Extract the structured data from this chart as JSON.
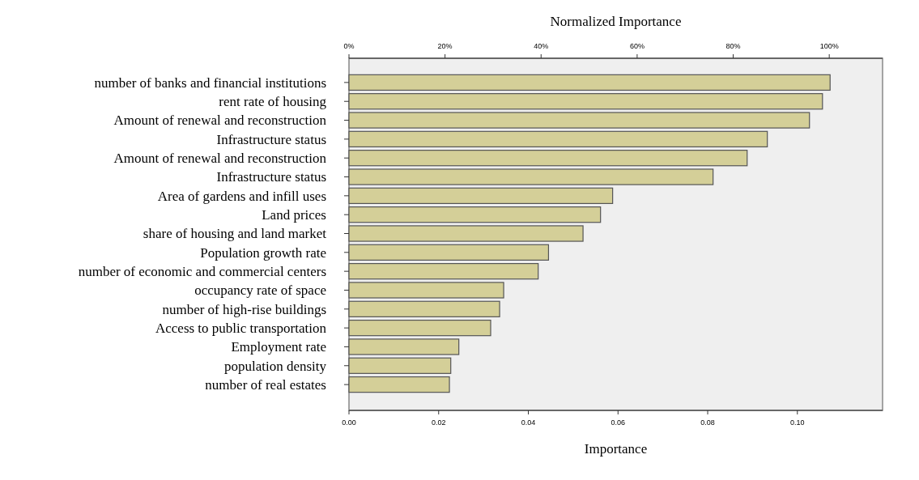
{
  "chart_data": {
    "type": "bar",
    "orientation": "horizontal",
    "xlabel": "Importance",
    "x2label": "Normalized Importance",
    "categories": [
      "number of banks and financial institutions",
      "rent rate of housing",
      "Amount of renewal and reconstruction",
      "Infrastructure status",
      "Amount of renewal and reconstruction",
      "Infrastructure status",
      "Area of gardens and infill uses",
      "Land prices",
      "share of housing and land market",
      "Population growth rate",
      "number of economic and commercial centers",
      "occupancy rate of space",
      "number of high-rise buildings",
      "Access to public transportation",
      "Employment rate",
      "population density",
      "number of real estates"
    ],
    "values": [
      0.1073,
      0.1056,
      0.1027,
      0.0933,
      0.0888,
      0.0812,
      0.0588,
      0.0561,
      0.0522,
      0.0445,
      0.0422,
      0.0345,
      0.0336,
      0.0316,
      0.0245,
      0.0227,
      0.0224
    ],
    "color": "#d4cf98",
    "xlim": [
      0,
      0.119
    ],
    "xticks": [
      {
        "value": 0,
        "label": "0.00"
      },
      {
        "value": 0.02,
        "label": "0.02"
      },
      {
        "value": 0.04,
        "label": "0.04"
      },
      {
        "value": 0.06,
        "label": "0.06"
      },
      {
        "value": 0.08,
        "label": "0.08"
      },
      {
        "value": 0.1,
        "label": "0.10"
      }
    ],
    "x2lim": [
      0,
      111.1
    ],
    "x2ticks": [
      {
        "value": 0,
        "label": "0%"
      },
      {
        "value": 20,
        "label": "20%"
      },
      {
        "value": 40,
        "label": "40%"
      },
      {
        "value": 60,
        "label": "60%"
      },
      {
        "value": 80,
        "label": "80%"
      },
      {
        "value": 100,
        "label": "100%"
      }
    ],
    "grid": false
  }
}
